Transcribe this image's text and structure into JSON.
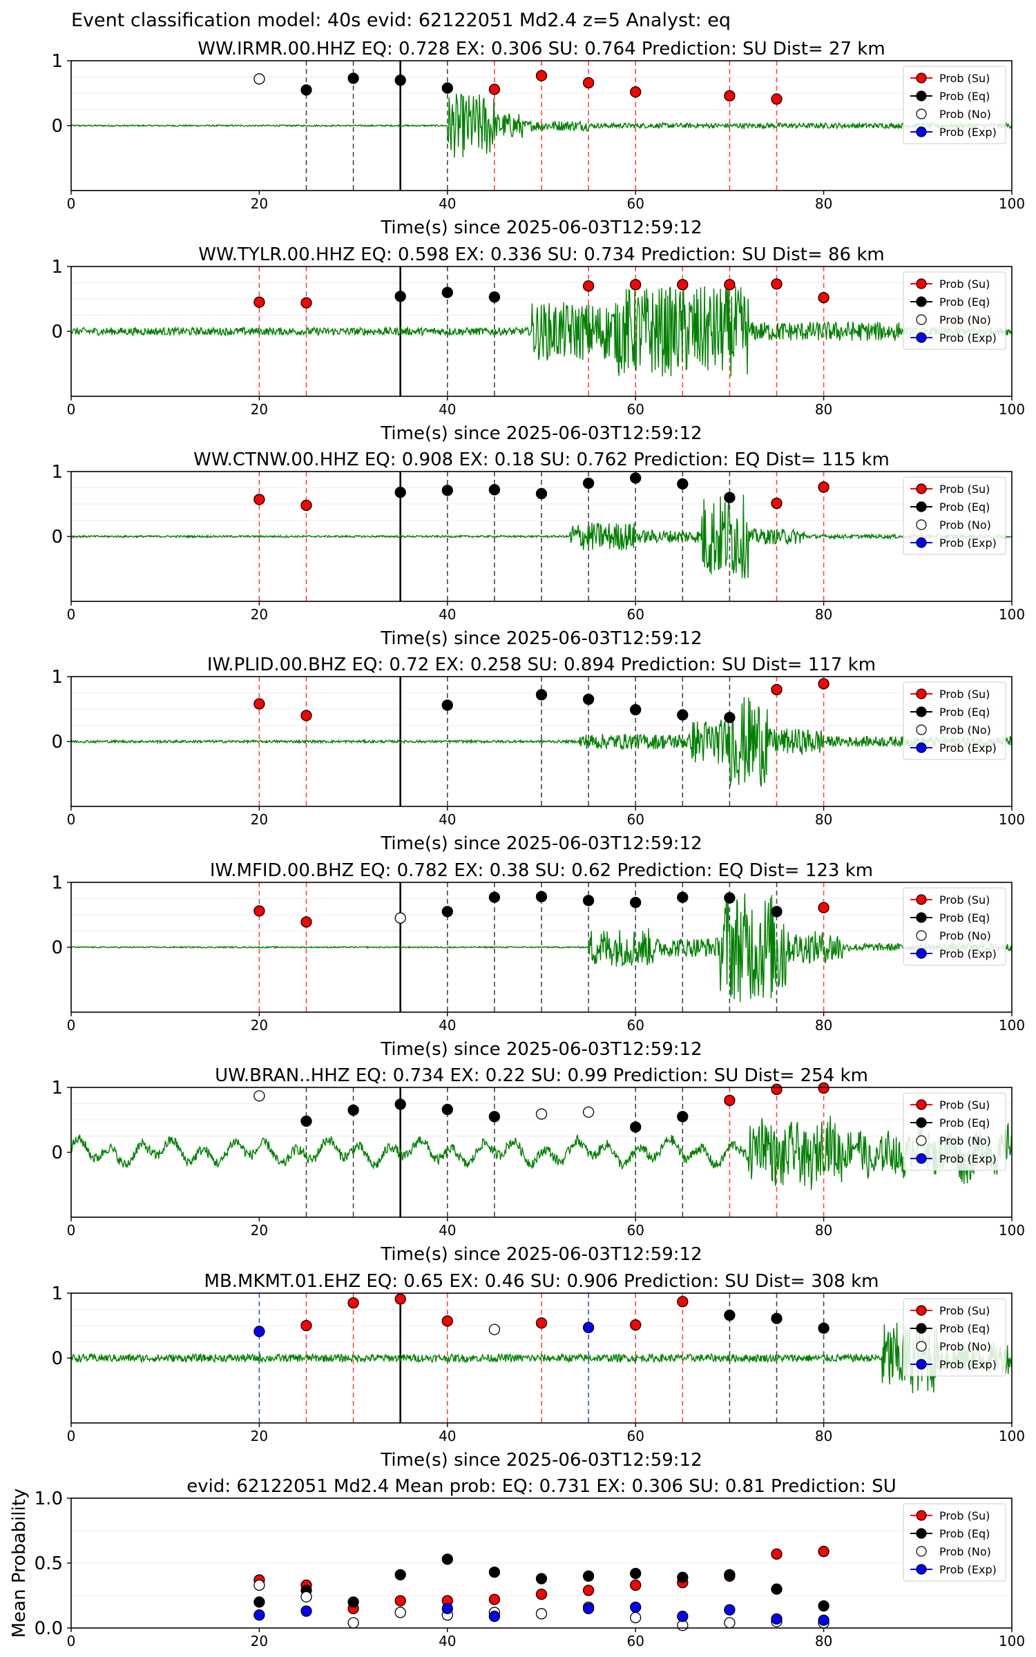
{
  "figure_title": "Event classification model: 40s evid: 62122051 Md2.4 z=5 Analyst: eq",
  "colors": {
    "su": "#ff0000",
    "eq": "#000000",
    "no": "#ffffff",
    "exp": "#0000ff",
    "waveform": "#008000",
    "vline_su": "#ff4444",
    "vline_eq": "#444444",
    "vline_exp": "#3344ff",
    "p_pick": "#000000"
  },
  "legend": [
    "Prob (Su)",
    "Prob (Eq)",
    "Prob (No)",
    "Prob (Exp)"
  ],
  "chart_data": [
    {
      "type": "scatter",
      "title": "WW.IRMR.00.HHZ   EQ: 0.728  EX: 0.306  SU: 0.764   Prediction: SU    Dist= 27 km",
      "xlabel": "Time(s) since 2025-06-03T12:59:12",
      "ylabel": "",
      "xlim": [
        0,
        100
      ],
      "ylim": [
        -1,
        1
      ],
      "xticks": [
        "0",
        "20",
        "40",
        "60",
        "80",
        "100"
      ],
      "yticks": [
        "0",
        "1"
      ],
      "p_pick": 35,
      "waveform": {
        "noise": 0.012,
        "segments": [
          [
            40,
            0.3
          ],
          [
            45,
            0.5
          ],
          [
            48,
            0.2
          ],
          [
            55,
            0.08
          ],
          [
            100,
            0.04
          ]
        ]
      },
      "points": [
        {
          "x": 20,
          "y": 0.72,
          "cls": "no"
        },
        {
          "x": 25,
          "y": 0.55,
          "cls": "eq"
        },
        {
          "x": 30,
          "y": 0.73,
          "cls": "eq"
        },
        {
          "x": 35,
          "y": 0.7,
          "cls": "eq"
        },
        {
          "x": 40,
          "y": 0.58,
          "cls": "eq"
        },
        {
          "x": 45,
          "y": 0.56,
          "cls": "su"
        },
        {
          "x": 50,
          "y": 0.77,
          "cls": "su"
        },
        {
          "x": 55,
          "y": 0.66,
          "cls": "su"
        },
        {
          "x": 60,
          "y": 0.52,
          "cls": "su"
        },
        {
          "x": 70,
          "y": 0.46,
          "cls": "su"
        },
        {
          "x": 75,
          "y": 0.41,
          "cls": "su"
        }
      ]
    },
    {
      "type": "scatter",
      "title": "WW.TYLR.00.HHZ   EQ: 0.598  EX: 0.336  SU: 0.734   Prediction: SU    Dist= 86 km",
      "xlabel": "Time(s) since 2025-06-03T12:59:12",
      "ylabel": "",
      "xlim": [
        0,
        100
      ],
      "ylim": [
        -1,
        1
      ],
      "xticks": [
        "0",
        "20",
        "40",
        "60",
        "80",
        "100"
      ],
      "yticks": [
        "0",
        "1"
      ],
      "p_pick": 35,
      "waveform": {
        "noise": 0.06,
        "segments": [
          [
            49,
            0.25
          ],
          [
            58,
            0.45
          ],
          [
            72,
            0.7
          ],
          [
            88,
            0.15
          ],
          [
            100,
            0.06
          ]
        ]
      },
      "points": [
        {
          "x": 20,
          "y": 0.45,
          "cls": "su"
        },
        {
          "x": 25,
          "y": 0.44,
          "cls": "su"
        },
        {
          "x": 35,
          "y": 0.54,
          "cls": "eq"
        },
        {
          "x": 40,
          "y": 0.6,
          "cls": "eq"
        },
        {
          "x": 45,
          "y": 0.53,
          "cls": "eq"
        },
        {
          "x": 55,
          "y": 0.7,
          "cls": "su"
        },
        {
          "x": 60,
          "y": 0.72,
          "cls": "su"
        },
        {
          "x": 65,
          "y": 0.72,
          "cls": "su"
        },
        {
          "x": 70,
          "y": 0.72,
          "cls": "su"
        },
        {
          "x": 75,
          "y": 0.73,
          "cls": "su"
        },
        {
          "x": 80,
          "y": 0.52,
          "cls": "su"
        }
      ]
    },
    {
      "type": "scatter",
      "title": "WW.CTNW.00.HHZ   EQ: 0.908  EX: 0.18  SU: 0.762   Prediction: EQ    Dist= 115 km",
      "xlabel": "Time(s) since 2025-06-03T12:59:12",
      "ylabel": "",
      "xlim": [
        0,
        100
      ],
      "ylim": [
        -1,
        1
      ],
      "xticks": [
        "0",
        "20",
        "40",
        "60",
        "80",
        "100"
      ],
      "yticks": [
        "0",
        "1"
      ],
      "p_pick": 35,
      "waveform": {
        "noise": 0.015,
        "segments": [
          [
            53,
            0.03
          ],
          [
            60,
            0.22
          ],
          [
            67,
            0.1
          ],
          [
            72,
            0.65
          ],
          [
            78,
            0.12
          ],
          [
            100,
            0.03
          ]
        ]
      },
      "points": [
        {
          "x": 20,
          "y": 0.57,
          "cls": "su"
        },
        {
          "x": 25,
          "y": 0.48,
          "cls": "su"
        },
        {
          "x": 35,
          "y": 0.68,
          "cls": "eq"
        },
        {
          "x": 40,
          "y": 0.71,
          "cls": "eq"
        },
        {
          "x": 45,
          "y": 0.72,
          "cls": "eq"
        },
        {
          "x": 50,
          "y": 0.66,
          "cls": "eq"
        },
        {
          "x": 55,
          "y": 0.82,
          "cls": "eq"
        },
        {
          "x": 60,
          "y": 0.9,
          "cls": "eq"
        },
        {
          "x": 65,
          "y": 0.81,
          "cls": "eq"
        },
        {
          "x": 70,
          "y": 0.6,
          "cls": "eq"
        },
        {
          "x": 75,
          "y": 0.51,
          "cls": "su"
        },
        {
          "x": 80,
          "y": 0.76,
          "cls": "su"
        }
      ]
    },
    {
      "type": "scatter",
      "title": "IW.PLID.00.BHZ   EQ: 0.72  EX: 0.258  SU: 0.894   Prediction: SU    Dist= 117 km",
      "xlabel": "Time(s) since 2025-06-03T12:59:12",
      "ylabel": "",
      "xlim": [
        0,
        100
      ],
      "ylim": [
        -1,
        1
      ],
      "xticks": [
        "0",
        "20",
        "40",
        "60",
        "80",
        "100"
      ],
      "yticks": [
        "0",
        "1"
      ],
      "p_pick": 35,
      "waveform": {
        "noise": 0.02,
        "segments": [
          [
            54,
            0.03
          ],
          [
            66,
            0.12
          ],
          [
            70,
            0.35
          ],
          [
            74,
            0.7
          ],
          [
            80,
            0.2
          ],
          [
            100,
            0.08
          ]
        ]
      },
      "points": [
        {
          "x": 20,
          "y": 0.58,
          "cls": "su"
        },
        {
          "x": 25,
          "y": 0.4,
          "cls": "su"
        },
        {
          "x": 40,
          "y": 0.56,
          "cls": "eq"
        },
        {
          "x": 50,
          "y": 0.72,
          "cls": "eq"
        },
        {
          "x": 55,
          "y": 0.65,
          "cls": "eq"
        },
        {
          "x": 60,
          "y": 0.49,
          "cls": "eq"
        },
        {
          "x": 65,
          "y": 0.41,
          "cls": "eq"
        },
        {
          "x": 70,
          "y": 0.37,
          "cls": "eq"
        },
        {
          "x": 75,
          "y": 0.8,
          "cls": "su"
        },
        {
          "x": 80,
          "y": 0.89,
          "cls": "su"
        }
      ]
    },
    {
      "type": "scatter",
      "title": "IW.MFID.00.BHZ   EQ: 0.782  EX: 0.38  SU: 0.62   Prediction: EQ    Dist= 123 km",
      "xlabel": "Time(s) since 2025-06-03T12:59:12",
      "ylabel": "",
      "xlim": [
        0,
        100
      ],
      "ylim": [
        -1,
        1
      ],
      "xticks": [
        "0",
        "20",
        "40",
        "60",
        "80",
        "100"
      ],
      "yticks": [
        "0",
        "1"
      ],
      "p_pick": 35,
      "waveform": {
        "noise": 0.01,
        "segments": [
          [
            55,
            0.02
          ],
          [
            62,
            0.3
          ],
          [
            69,
            0.15
          ],
          [
            76,
            0.85
          ],
          [
            82,
            0.25
          ],
          [
            100,
            0.06
          ]
        ]
      },
      "points": [
        {
          "x": 20,
          "y": 0.56,
          "cls": "su"
        },
        {
          "x": 25,
          "y": 0.39,
          "cls": "su"
        },
        {
          "x": 35,
          "y": 0.45,
          "cls": "no"
        },
        {
          "x": 40,
          "y": 0.55,
          "cls": "eq"
        },
        {
          "x": 45,
          "y": 0.77,
          "cls": "eq"
        },
        {
          "x": 50,
          "y": 0.78,
          "cls": "eq"
        },
        {
          "x": 55,
          "y": 0.72,
          "cls": "eq"
        },
        {
          "x": 60,
          "y": 0.69,
          "cls": "eq"
        },
        {
          "x": 65,
          "y": 0.77,
          "cls": "eq"
        },
        {
          "x": 70,
          "y": 0.76,
          "cls": "eq"
        },
        {
          "x": 75,
          "y": 0.55,
          "cls": "eq"
        },
        {
          "x": 80,
          "y": 0.61,
          "cls": "su"
        }
      ]
    },
    {
      "type": "scatter",
      "title": "UW.BRAN..HHZ   EQ: 0.734  EX: 0.22  SU: 0.99   Prediction: SU    Dist= 254 km",
      "xlabel": "Time(s) since 2025-06-03T12:59:12",
      "ylabel": "",
      "xlim": [
        0,
        100
      ],
      "ylim": [
        -1,
        1
      ],
      "xticks": [
        "0",
        "20",
        "40",
        "60",
        "80",
        "100"
      ],
      "yticks": [
        "0",
        "1"
      ],
      "p_pick": 35,
      "waveform": {
        "noise": 0.08,
        "wave": 0.2,
        "segments": [
          [
            72,
            0.05
          ],
          [
            82,
            0.45
          ],
          [
            100,
            0.3
          ]
        ]
      },
      "points": [
        {
          "x": 20,
          "y": 0.87,
          "cls": "no"
        },
        {
          "x": 25,
          "y": 0.48,
          "cls": "eq"
        },
        {
          "x": 30,
          "y": 0.65,
          "cls": "eq"
        },
        {
          "x": 35,
          "y": 0.74,
          "cls": "eq"
        },
        {
          "x": 40,
          "y": 0.66,
          "cls": "eq"
        },
        {
          "x": 45,
          "y": 0.55,
          "cls": "eq"
        },
        {
          "x": 50,
          "y": 0.59,
          "cls": "no"
        },
        {
          "x": 55,
          "y": 0.62,
          "cls": "no"
        },
        {
          "x": 60,
          "y": 0.39,
          "cls": "eq"
        },
        {
          "x": 65,
          "y": 0.55,
          "cls": "eq"
        },
        {
          "x": 70,
          "y": 0.8,
          "cls": "su"
        },
        {
          "x": 75,
          "y": 0.97,
          "cls": "su"
        },
        {
          "x": 80,
          "y": 0.99,
          "cls": "su"
        }
      ]
    },
    {
      "type": "scatter",
      "title": "MB.MKMT.01.EHZ   EQ: 0.65  EX: 0.46  SU: 0.906   Prediction: SU    Dist= 308 km",
      "xlabel": "Time(s) since 2025-06-03T12:59:12",
      "ylabel": "",
      "xlim": [
        0,
        100
      ],
      "ylim": [
        -1,
        1
      ],
      "xticks": [
        "0",
        "20",
        "40",
        "60",
        "80",
        "100"
      ],
      "yticks": [
        "0",
        "1"
      ],
      "p_pick": 35,
      "waveform": {
        "noise": 0.06,
        "segments": [
          [
            86,
            0.04
          ],
          [
            92,
            0.55
          ],
          [
            100,
            0.25
          ]
        ]
      },
      "points": [
        {
          "x": 20,
          "y": 0.41,
          "cls": "exp"
        },
        {
          "x": 25,
          "y": 0.5,
          "cls": "su"
        },
        {
          "x": 30,
          "y": 0.85,
          "cls": "su"
        },
        {
          "x": 35,
          "y": 0.91,
          "cls": "su"
        },
        {
          "x": 40,
          "y": 0.57,
          "cls": "su"
        },
        {
          "x": 45,
          "y": 0.44,
          "cls": "no"
        },
        {
          "x": 50,
          "y": 0.54,
          "cls": "su"
        },
        {
          "x": 55,
          "y": 0.47,
          "cls": "exp"
        },
        {
          "x": 60,
          "y": 0.51,
          "cls": "su"
        },
        {
          "x": 65,
          "y": 0.87,
          "cls": "su"
        },
        {
          "x": 70,
          "y": 0.66,
          "cls": "eq"
        },
        {
          "x": 75,
          "y": 0.61,
          "cls": "eq"
        },
        {
          "x": 80,
          "y": 0.46,
          "cls": "eq"
        }
      ]
    },
    {
      "type": "scatter",
      "title": "evid: 62122051  Md2.4   Mean prob:   EQ: 0.731  EX: 0.306  SU: 0.81   Prediction: SU",
      "xlabel": "",
      "ylabel": "Mean Probability",
      "xlim": [
        0,
        100
      ],
      "ylim": [
        0,
        1
      ],
      "xticks": [
        "0",
        "20",
        "40",
        "60",
        "80",
        "100"
      ],
      "yticks": [
        "0.0",
        "0.5",
        "1.0"
      ],
      "x": [
        20,
        25,
        30,
        35,
        40,
        45,
        50,
        55,
        60,
        65,
        70,
        75,
        80
      ],
      "series": [
        {
          "name": "Prob (Su)",
          "cls": "su",
          "values": [
            0.37,
            0.33,
            0.15,
            0.21,
            0.21,
            0.22,
            0.26,
            0.29,
            0.33,
            0.35,
            0.4,
            0.57,
            0.59
          ]
        },
        {
          "name": "Prob (Eq)",
          "cls": "eq",
          "values": [
            0.2,
            0.29,
            0.2,
            0.41,
            0.53,
            0.43,
            0.38,
            0.4,
            0.42,
            0.39,
            0.41,
            0.3,
            0.17
          ]
        },
        {
          "name": "Prob (No)",
          "cls": "no",
          "values": [
            0.33,
            0.24,
            0.04,
            0.12,
            0.1,
            0.12,
            0.11,
            0.16,
            0.08,
            0.02,
            0.04,
            0.05,
            0.04
          ]
        },
        {
          "name": "Prob (Exp)",
          "cls": "exp",
          "values": [
            0.1,
            0.13,
            0.0,
            0.0,
            0.15,
            0.09,
            0.0,
            0.15,
            0.16,
            0.09,
            0.14,
            0.07,
            0.06
          ]
        }
      ]
    }
  ]
}
